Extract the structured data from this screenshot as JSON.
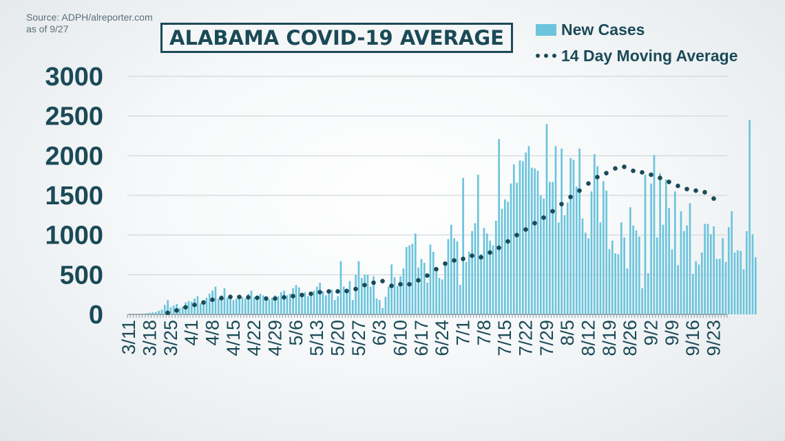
{
  "source": {
    "line1": "Source: ADPH/alreporter.com",
    "line2": "as of 9/27"
  },
  "legend": {
    "bars_label": "New Cases",
    "line_label": "14 Day Moving Average"
  },
  "colors": {
    "bar": "#6cc4dc",
    "avg_dot": "#1b4a57",
    "text": "#1b4a57",
    "grid": "#c9d0d4"
  },
  "chart_data": {
    "type": "bar",
    "title": "ALABAMA COVID-19 AVERAGE",
    "xlabel": "",
    "ylabel": "",
    "ylim": [
      0,
      3000
    ],
    "yticks": [
      0,
      500,
      1000,
      1500,
      2000,
      2500,
      3000
    ],
    "start_date": "3/11",
    "end_date": "9/27",
    "xtick_labels": [
      "3/11",
      "3/18",
      "3/25",
      "4/1",
      "4/8",
      "4/15",
      "4/22",
      "4/29",
      "5/6",
      "5/13",
      "5/20",
      "5/27",
      "6/3",
      "6/10",
      "6/17",
      "6/24",
      "7/1",
      "7/8",
      "7/15",
      "7/22",
      "7/29",
      "8/5",
      "8/12",
      "8/19",
      "8/26",
      "9/2",
      "9/9",
      "9/16",
      "9/23"
    ],
    "grid": true,
    "legend_position": "top-right",
    "series": [
      {
        "name": "New Cases",
        "type": "bar",
        "values": [
          3,
          3,
          4,
          6,
          8,
          10,
          14,
          20,
          25,
          30,
          45,
          60,
          120,
          180,
          90,
          110,
          130,
          80,
          100,
          150,
          170,
          160,
          200,
          230,
          140,
          180,
          210,
          260,
          300,
          350,
          200,
          240,
          330,
          210,
          250,
          180,
          200,
          230,
          220,
          200,
          260,
          300,
          220,
          200,
          260,
          240,
          180,
          190,
          210,
          240,
          230,
          280,
          300,
          240,
          260,
          330,
          370,
          340,
          260,
          280,
          230,
          260,
          300,
          350,
          400,
          290,
          240,
          260,
          310,
          180,
          230,
          670,
          350,
          280,
          420,
          180,
          500,
          670,
          460,
          500,
          500,
          350,
          480,
          200,
          180,
          80,
          220,
          350,
          630,
          470,
          360,
          480,
          580,
          850,
          870,
          890,
          1020,
          590,
          700,
          650,
          400,
          880,
          790,
          540,
          460,
          440,
          650,
          950,
          1130,
          960,
          920,
          370,
          1720,
          660,
          790,
          1050,
          1150,
          1760,
          760,
          1090,
          1020,
          930,
          870,
          1180,
          2210,
          1330,
          1450,
          1420,
          1650,
          1890,
          1660,
          1940,
          1930,
          2040,
          2120,
          1850,
          1840,
          1810,
          1500,
          1460,
          2400,
          1670,
          1670,
          2120,
          1160,
          2090,
          1250,
          1410,
          1970,
          1950,
          1610,
          2090,
          1210,
          1030,
          960,
          1550,
          2020,
          1870,
          1160,
          1680,
          1560,
          820,
          930,
          770,
          760,
          1160,
          970,
          580,
          1350,
          1120,
          1060,
          980,
          330,
          1760,
          520,
          1650,
          2010,
          970,
          1780,
          1130,
          1700,
          1340,
          820,
          1550,
          620,
          1300,
          1050,
          1120,
          1400,
          510,
          670,
          630,
          780,
          1140,
          1140,
          1010,
          1110,
          700,
          700,
          960,
          660,
          1100,
          1300,
          780,
          810,
          800,
          570,
          1050,
          2450,
          1010,
          720
        ]
      },
      {
        "name": "14 Day Moving Average",
        "type": "line",
        "style": "dotted",
        "points": [
          {
            "x": "3/24",
            "y": 20
          },
          {
            "x": "3/27",
            "y": 50
          },
          {
            "x": "3/30",
            "y": 90
          },
          {
            "x": "4/2",
            "y": 120
          },
          {
            "x": "4/5",
            "y": 150
          },
          {
            "x": "4/8",
            "y": 185
          },
          {
            "x": "4/11",
            "y": 205
          },
          {
            "x": "4/14",
            "y": 220
          },
          {
            "x": "4/17",
            "y": 220
          },
          {
            "x": "4/20",
            "y": 215
          },
          {
            "x": "4/23",
            "y": 210
          },
          {
            "x": "4/26",
            "y": 200
          },
          {
            "x": "4/29",
            "y": 200
          },
          {
            "x": "5/2",
            "y": 215
          },
          {
            "x": "5/5",
            "y": 230
          },
          {
            "x": "5/8",
            "y": 245
          },
          {
            "x": "5/11",
            "y": 260
          },
          {
            "x": "5/14",
            "y": 280
          },
          {
            "x": "5/17",
            "y": 290
          },
          {
            "x": "5/20",
            "y": 290
          },
          {
            "x": "5/23",
            "y": 295
          },
          {
            "x": "5/26",
            "y": 320
          },
          {
            "x": "5/29",
            "y": 370
          },
          {
            "x": "6/1",
            "y": 400
          },
          {
            "x": "6/4",
            "y": 420
          },
          {
            "x": "6/7",
            "y": 360
          },
          {
            "x": "6/10",
            "y": 380
          },
          {
            "x": "6/13",
            "y": 380
          },
          {
            "x": "6/16",
            "y": 430
          },
          {
            "x": "6/19",
            "y": 490
          },
          {
            "x": "6/22",
            "y": 570
          },
          {
            "x": "6/25",
            "y": 640
          },
          {
            "x": "6/28",
            "y": 680
          },
          {
            "x": "7/1",
            "y": 700
          },
          {
            "x": "7/4",
            "y": 740
          },
          {
            "x": "7/7",
            "y": 720
          },
          {
            "x": "7/10",
            "y": 780
          },
          {
            "x": "7/13",
            "y": 840
          },
          {
            "x": "7/16",
            "y": 920
          },
          {
            "x": "7/19",
            "y": 1000
          },
          {
            "x": "7/22",
            "y": 1070
          },
          {
            "x": "7/25",
            "y": 1150
          },
          {
            "x": "7/28",
            "y": 1220
          },
          {
            "x": "7/31",
            "y": 1300
          },
          {
            "x": "8/3",
            "y": 1390
          },
          {
            "x": "8/6",
            "y": 1480
          },
          {
            "x": "8/9",
            "y": 1560
          },
          {
            "x": "8/12",
            "y": 1650
          },
          {
            "x": "8/15",
            "y": 1730
          },
          {
            "x": "8/18",
            "y": 1780
          },
          {
            "x": "8/21",
            "y": 1840
          },
          {
            "x": "8/24",
            "y": 1860
          },
          {
            "x": "8/27",
            "y": 1810
          },
          {
            "x": "8/30",
            "y": 1790
          },
          {
            "x": "9/2",
            "y": 1760
          },
          {
            "x": "9/5",
            "y": 1720
          },
          {
            "x": "9/8",
            "y": 1670
          },
          {
            "x": "9/11",
            "y": 1620
          },
          {
            "x": "9/14",
            "y": 1580
          },
          {
            "x": "9/17",
            "y": 1560
          },
          {
            "x": "9/20",
            "y": 1540
          },
          {
            "x": "9/23",
            "y": 1460
          }
        ]
      }
    ]
  }
}
